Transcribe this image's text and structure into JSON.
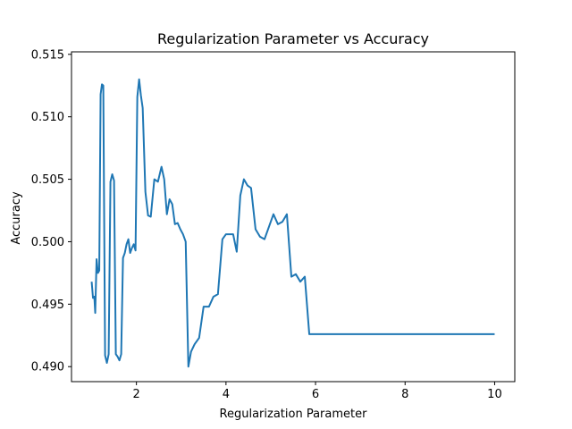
{
  "chart_data": {
    "type": "line",
    "title": "Regularization Parameter vs Accuracy",
    "xlabel": "Regularization Parameter",
    "ylabel": "Accuracy",
    "xlim": [
      0.55,
      10.45
    ],
    "ylim": [
      0.4888,
      0.5152
    ],
    "grid": false,
    "legend": "none",
    "line_color": "#1f77b4",
    "x_ticks": [
      {
        "value": 2,
        "label": "2"
      },
      {
        "value": 4,
        "label": "4"
      },
      {
        "value": 6,
        "label": "6"
      },
      {
        "value": 8,
        "label": "8"
      },
      {
        "value": 10,
        "label": "10"
      }
    ],
    "y_ticks": [
      {
        "value": 0.49,
        "label": "0.490"
      },
      {
        "value": 0.495,
        "label": "0.495"
      },
      {
        "value": 0.5,
        "label": "0.500"
      },
      {
        "value": 0.505,
        "label": "0.505"
      },
      {
        "value": 0.51,
        "label": "0.510"
      },
      {
        "value": 0.515,
        "label": "0.515"
      }
    ],
    "series": [
      {
        "x": [
          1.0,
          1.03,
          1.06,
          1.08,
          1.11,
          1.14,
          1.17,
          1.2,
          1.23,
          1.26,
          1.3,
          1.34,
          1.38,
          1.42,
          1.46,
          1.5,
          1.54,
          1.58,
          1.62,
          1.66,
          1.7,
          1.74,
          1.78,
          1.82,
          1.86,
          1.9,
          1.94,
          1.98,
          2.02,
          2.06,
          2.1,
          2.14,
          2.2,
          2.26,
          2.32,
          2.4,
          2.48,
          2.56,
          2.62,
          2.68,
          2.74,
          2.8,
          2.86,
          2.92,
          2.98,
          3.04,
          3.1,
          3.16,
          3.22,
          3.3,
          3.4,
          3.5,
          3.62,
          3.72,
          3.82,
          3.92,
          4.0,
          4.08,
          4.16,
          4.24,
          4.32,
          4.4,
          4.48,
          4.56,
          4.66,
          4.76,
          4.86,
          4.96,
          5.06,
          5.16,
          5.26,
          5.36,
          5.46,
          5.56,
          5.66,
          5.76,
          5.86,
          5.96,
          6.06,
          6.16,
          6.3,
          6.5,
          6.7,
          6.88,
          7.06,
          7.24,
          7.42,
          7.6,
          7.8,
          8.0,
          8.14,
          8.3,
          8.5,
          8.7,
          8.9,
          9.1,
          9.3,
          9.55,
          9.8,
          10.0
        ],
        "y": [
          0.4968,
          0.4955,
          0.4956,
          0.4943,
          0.4986,
          0.4975,
          0.4977,
          0.5118,
          0.5126,
          0.5125,
          0.4909,
          0.4903,
          0.491,
          0.5048,
          0.5054,
          0.5049,
          0.491,
          0.4908,
          0.4905,
          0.491,
          0.4987,
          0.4991,
          0.4998,
          0.5002,
          0.4991,
          0.4995,
          0.4998,
          0.4993,
          0.5116,
          0.513,
          0.5117,
          0.5107,
          0.504,
          0.5021,
          0.502,
          0.505,
          0.5048,
          0.506,
          0.505,
          0.5022,
          0.5034,
          0.503,
          0.5014,
          0.5015,
          0.501,
          0.5006,
          0.5,
          0.49,
          0.4912,
          0.4918,
          0.4923,
          0.4948,
          0.4948,
          0.4956,
          0.4958,
          0.5002,
          0.5006,
          0.5006,
          0.5006,
          0.4992,
          0.5037,
          0.505,
          0.5045,
          0.5043,
          0.501,
          0.5004,
          0.5002,
          0.5012,
          0.5022,
          0.5014,
          0.5016,
          0.5022,
          0.4972,
          0.4974,
          0.4968,
          0.4972,
          0.4926,
          0.4926,
          0.4926,
          0.4926,
          0.4926,
          0.4926,
          0.4926,
          0.4926,
          0.4926,
          0.4926,
          0.4926,
          0.4926,
          0.4926,
          0.4926,
          0.4926,
          0.4926,
          0.4926,
          0.4926,
          0.4926,
          0.4926,
          0.4926,
          0.4926,
          0.4926,
          0.4926
        ]
      }
    ]
  }
}
